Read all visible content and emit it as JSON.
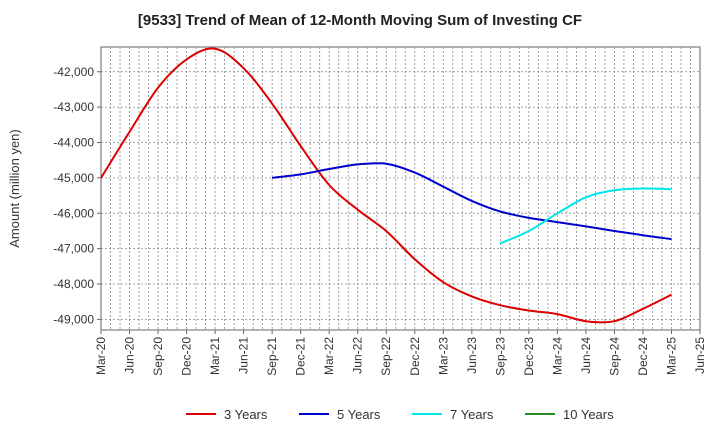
{
  "chart_data": {
    "type": "line",
    "title": "[9533]  Trend of Mean of 12-Month Moving Sum of Investing CF",
    "xlabel": "",
    "ylabel": "Amount (million yen)",
    "ylim": [
      -49300,
      -41300
    ],
    "yticks": [
      -42000,
      -43000,
      -44000,
      -45000,
      -46000,
      -47000,
      -48000,
      -49000
    ],
    "ytick_labels": [
      "-42,000",
      "-43,000",
      "-44,000",
      "-45,000",
      "-46,000",
      "-47,000",
      "-48,000",
      "-49,000"
    ],
    "x_tick_labels": [
      "Mar-20",
      "Jun-20",
      "Sep-20",
      "Dec-20",
      "Mar-21",
      "Jun-21",
      "Sep-21",
      "Dec-21",
      "Mar-22",
      "Jun-22",
      "Sep-22",
      "Dec-22",
      "Mar-23",
      "Jun-23",
      "Sep-23",
      "Dec-23",
      "Mar-24",
      "Jun-24",
      "Sep-24",
      "Dec-24",
      "Mar-25",
      "Jun-25"
    ],
    "grid": true,
    "legend_position": "bottom",
    "series": [
      {
        "name": "3 Years",
        "color": "#dd0000",
        "x": [
          0,
          1,
          2,
          3,
          4,
          5,
          6,
          7,
          8,
          9,
          10,
          11,
          12,
          13,
          14,
          15,
          16,
          17,
          18,
          19,
          20
        ],
        "values": [
          -45000,
          -43700,
          -42450,
          -41650,
          -41350,
          -41900,
          -42900,
          -44100,
          -45200,
          -45900,
          -46500,
          -47300,
          -47950,
          -48350,
          -48600,
          -48750,
          -48850,
          -49050,
          -49050,
          -48700,
          -48300
        ]
      },
      {
        "name": "5 Years",
        "color": "#0000cc",
        "x": [
          6,
          7,
          8,
          9,
          10,
          11,
          12,
          13,
          14,
          15,
          16,
          17,
          18,
          19,
          20
        ],
        "values": [
          -45000,
          -44900,
          -44750,
          -44620,
          -44600,
          -44850,
          -45250,
          -45650,
          -45950,
          -46130,
          -46250,
          -46370,
          -46500,
          -46620,
          -46730
        ]
      },
      {
        "name": "7 Years",
        "color": "#00e5ee",
        "x": [
          14,
          15,
          16,
          17,
          18,
          19,
          20
        ],
        "values": [
          -46850,
          -46500,
          -46000,
          -45550,
          -45350,
          -45300,
          -45320
        ]
      },
      {
        "name": "10 Years",
        "color": "#228b22",
        "x": [],
        "values": []
      }
    ]
  }
}
